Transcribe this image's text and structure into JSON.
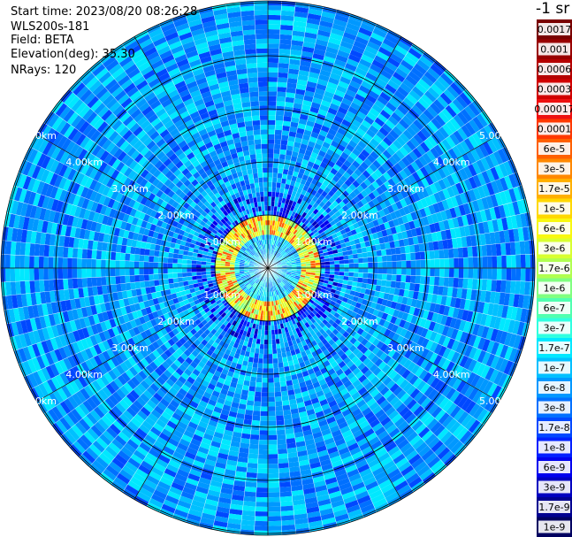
{
  "info": {
    "start_time": "Start time: 2023/08/20 08:26:28",
    "device": "WLS200s-181",
    "field": "Field: BETA",
    "elevation": "Elevation(deg): 35.30",
    "nrays": "NRays: 120"
  },
  "colorbar": {
    "unit_label": "-1 sr",
    "ticks": [
      "0.0017",
      "0.001",
      "0.0006",
      "0.0003",
      "0.00017",
      "0.0001",
      "6e-5",
      "3e-5",
      "1.7e-5",
      "1e-5",
      "6e-6",
      "3e-6",
      "1.7e-6",
      "1e-6",
      "6e-7",
      "3e-7",
      "1.7e-7",
      "1e-7",
      "6e-8",
      "3e-8",
      "1.7e-8",
      "1e-8",
      "6e-9",
      "3e-9",
      "1.7e-9",
      "1e-9"
    ],
    "colors": [
      "#7a0000",
      "#990000",
      "#b50000",
      "#d10000",
      "#ee1010",
      "#ff3800",
      "#ff6000",
      "#ff8800",
      "#ffb000",
      "#ffd800",
      "#f8f810",
      "#d8ff30",
      "#b0ff50",
      "#80ff80",
      "#50ffb0",
      "#30ffe0",
      "#00e8ff",
      "#00c0ff",
      "#0098ff",
      "#0070ff",
      "#0048ff",
      "#0020ff",
      "#0000ee",
      "#0000c0",
      "#000090",
      "#000060"
    ]
  },
  "chart_data": {
    "type": "heatmap",
    "projection": "polar (PPI scan)",
    "field": "BETA",
    "n_rays": 120,
    "elevation_deg": 35.3,
    "range_ring_labels": [
      "1.00km",
      "2.00km",
      "3.00km",
      "4.00km",
      "5.00km"
    ],
    "color_scale": "log",
    "value_range": [
      1e-09,
      0.0017
    ],
    "unit": "sr-1",
    "description_of_pattern": [
      {
        "range_km": [
          0.0,
          0.6
        ],
        "beta_approx": 1e-07
      },
      {
        "range_km": [
          0.6,
          1.0
        ],
        "beta_approx": 3e-06
      },
      {
        "range_km": [
          1.0,
          1.4
        ],
        "beta_approx": 1e-08
      },
      {
        "range_km": [
          1.4,
          6.0
        ],
        "beta_approx": 6e-08
      }
    ]
  }
}
